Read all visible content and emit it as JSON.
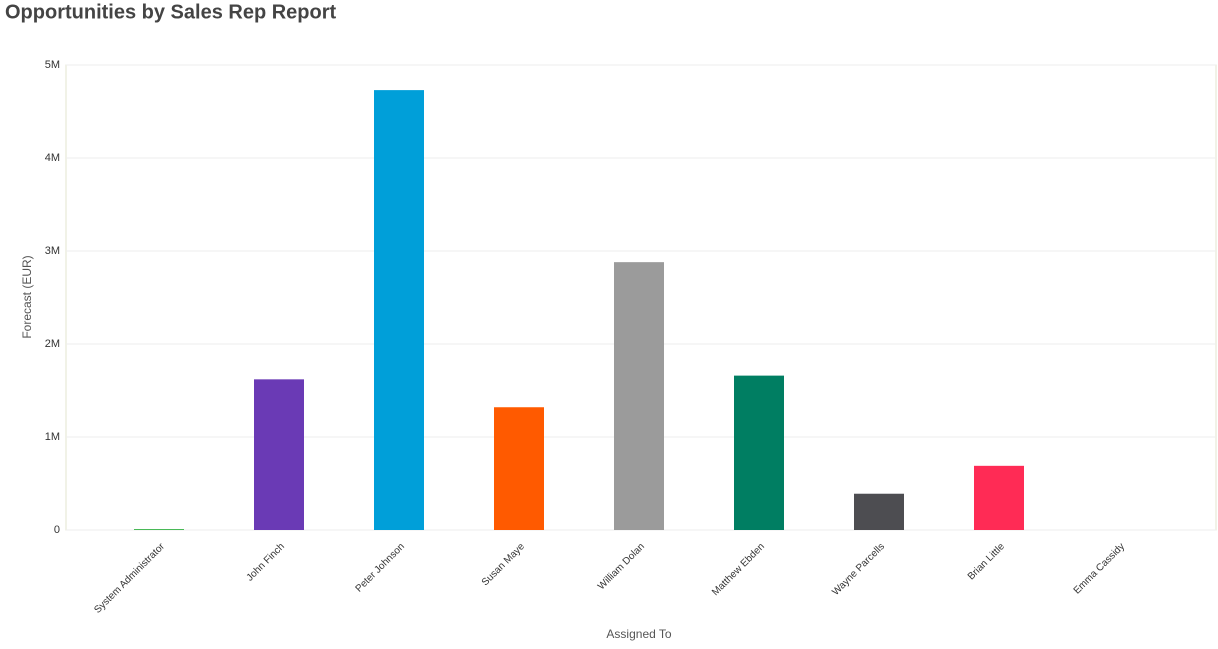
{
  "chart_data": {
    "type": "bar",
    "title": "Opportunities by Sales Rep Report",
    "x_label": "Assigned To",
    "y_label": "Forecast (EUR)",
    "categories": [
      "System Administrator",
      "John Finch",
      "Peter Johnson",
      "Susan Maye",
      "William Dolan",
      "Matthew Ebden",
      "Wayne Parcells",
      "Brian Little",
      "Emma Cassidy"
    ],
    "values": [
      10000,
      1620000,
      4730000,
      1320000,
      2880000,
      1660000,
      390000,
      690000,
      0
    ],
    "colors": [
      "#3cb44b",
      "#6a3ab5",
      "#009fd9",
      "#ff5a00",
      "#9b9b9b",
      "#007e62",
      "#4d4d51",
      "#ff2b55",
      "#e0a800"
    ],
    "ylim": [
      0,
      5000000
    ],
    "yticks": [
      0,
      {
        "value": 1000000,
        "label": "1M"
      },
      {
        "value": 2000000,
        "label": "2M"
      },
      {
        "value": 3000000,
        "label": "3M"
      },
      {
        "value": 4000000,
        "label": "4M"
      },
      {
        "value": 5000000,
        "label": "5M"
      }
    ],
    "grid": true
  }
}
